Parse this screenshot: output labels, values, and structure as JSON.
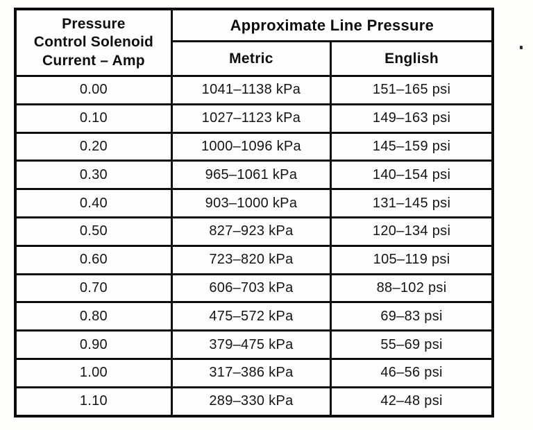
{
  "table": {
    "amp_header_lines": {
      "line1": "Pressure",
      "line2": "Control Solenoid",
      "line3": "Current – Amp"
    },
    "group_header": "Approximate Line Pressure",
    "sub_headers": {
      "metric": "Metric",
      "english": "English"
    },
    "rows": [
      {
        "amp": "0.00",
        "metric": "1041–1138 kPa",
        "english": "151–165 psi"
      },
      {
        "amp": "0.10",
        "metric": "1027–1123 kPa",
        "english": "149–163 psi"
      },
      {
        "amp": "0.20",
        "metric": "1000–1096 kPa",
        "english": "145–159 psi"
      },
      {
        "amp": "0.30",
        "metric": "965–1061 kPa",
        "english": "140–154 psi"
      },
      {
        "amp": "0.40",
        "metric": "903–1000 kPa",
        "english": "131–145 psi"
      },
      {
        "amp": "0.50",
        "metric": "827–923 kPa",
        "english": "120–134 psi"
      },
      {
        "amp": "0.60",
        "metric": "723–820 kPa",
        "english": "105–119 psi"
      },
      {
        "amp": "0.70",
        "metric": "606–703 kPa",
        "english": "88–102 psi"
      },
      {
        "amp": "0.80",
        "metric": "475–572 kPa",
        "english": "69–83 psi"
      },
      {
        "amp": "0.90",
        "metric": "379–475 kPa",
        "english": "55–69 psi"
      },
      {
        "amp": "1.00",
        "metric": "317–386 kPa",
        "english": "46–56 psi"
      },
      {
        "amp": "1.10",
        "metric": "289–330 kPa",
        "english": "42–48 psi"
      }
    ],
    "colors": {
      "ink": "#0c0c0c",
      "paper": "#fdfdfc"
    }
  }
}
